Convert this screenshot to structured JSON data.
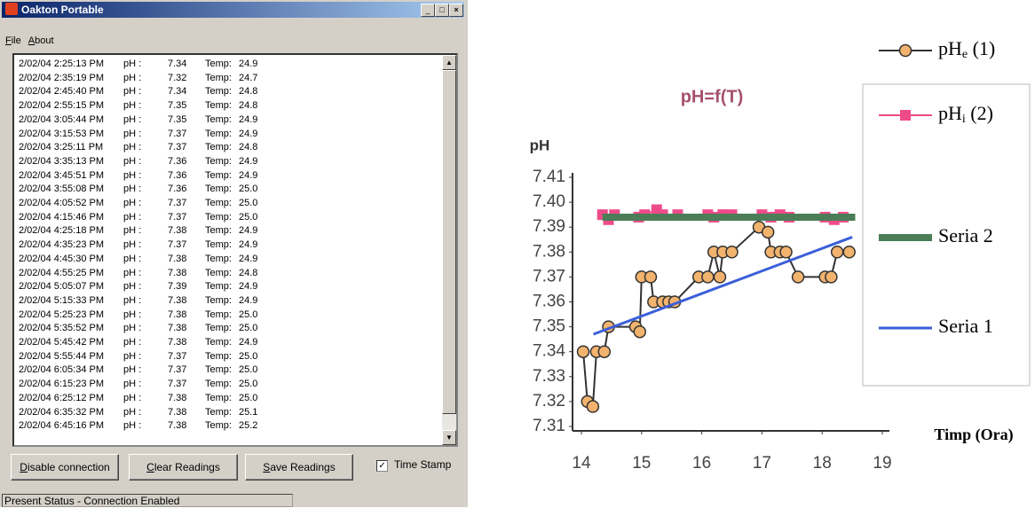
{
  "window": {
    "title": "Oakton Portable",
    "menu": [
      "File",
      "About"
    ],
    "readings": {
      "ph_label": "pH :",
      "temp_label": "Temp:",
      "rows": [
        [
          "2/02/04 2:25:13 PM",
          "7.34",
          "24.9"
        ],
        [
          "2/02/04 2:35:19 PM",
          "7.32",
          "24.7"
        ],
        [
          "2/02/04 2:45:40 PM",
          "7.34",
          "24.8"
        ],
        [
          "2/02/04 2:55:15 PM",
          "7.35",
          "24.8"
        ],
        [
          "2/02/04 3:05:44 PM",
          "7.35",
          "24.9"
        ],
        [
          "2/02/04 3:15:53 PM",
          "7.37",
          "24.9"
        ],
        [
          "2/02/04 3:25:11 PM",
          "7.37",
          "24.8"
        ],
        [
          "2/02/04 3:35:13 PM",
          "7.36",
          "24.9"
        ],
        [
          "2/02/04 3:45:51 PM",
          "7.36",
          "24.9"
        ],
        [
          "2/02/04 3:55:08 PM",
          "7.36",
          "25.0"
        ],
        [
          "2/02/04 4:05:52 PM",
          "7.37",
          "25.0"
        ],
        [
          "2/02/04 4:15:46 PM",
          "7.37",
          "25.0"
        ],
        [
          "2/02/04 4:25:18 PM",
          "7.38",
          "24.9"
        ],
        [
          "2/02/04 4:35:23 PM",
          "7.37",
          "24.9"
        ],
        [
          "2/02/04 4:45:30 PM",
          "7.38",
          "24.9"
        ],
        [
          "2/02/04 4:55:25 PM",
          "7.38",
          "24.8"
        ],
        [
          "2/02/04 5:05:07 PM",
          "7.39",
          "24.9"
        ],
        [
          "2/02/04 5:15:33 PM",
          "7.38",
          "24.9"
        ],
        [
          "2/02/04 5:25:23 PM",
          "7.38",
          "25.0"
        ],
        [
          "2/02/04 5:35:52 PM",
          "7.38",
          "25.0"
        ],
        [
          "2/02/04 5:45:42 PM",
          "7.38",
          "24.9"
        ],
        [
          "2/02/04 5:55:44 PM",
          "7.37",
          "25.0"
        ],
        [
          "2/02/04 6:05:34 PM",
          "7.37",
          "25.0"
        ],
        [
          "2/02/04 6:15:23 PM",
          "7.37",
          "25.0"
        ],
        [
          "2/02/04 6:25:12 PM",
          "7.38",
          "25.0"
        ],
        [
          "2/02/04 6:35:32 PM",
          "7.38",
          "25.1"
        ],
        [
          "2/02/04 6:45:16 PM",
          "7.38",
          "25.2"
        ]
      ]
    },
    "buttons": [
      "Disable connection",
      "Clear Readings",
      "Save Readings"
    ],
    "checkbox": "Time Stamp",
    "status": "Present Status - Connection Enabled"
  },
  "chart_data": {
    "type": "line",
    "title": "pH=f(T)",
    "y_label": "pH",
    "x_label": "Timp (Ora)",
    "xlim": [
      14,
      19
    ],
    "xticks": [
      14,
      15,
      16,
      17,
      18,
      19
    ],
    "ylim": [
      7.31,
      7.41
    ],
    "yticks": [
      7.31,
      7.32,
      7.33,
      7.34,
      7.35,
      7.36,
      7.37,
      7.38,
      7.39,
      {
        "value": 7.4,
        "label": "7.40"
      },
      7.41
    ],
    "series": [
      {
        "name": "pHe (1)",
        "color": "#f2b36e",
        "marker": "circle",
        "x": [
          14.03,
          14.1,
          14.19,
          14.25,
          14.38,
          14.45,
          14.9,
          14.97,
          15.0,
          15.15,
          15.2,
          15.35,
          15.45,
          15.55,
          15.95,
          16.1,
          16.2,
          16.3,
          16.35,
          16.5,
          16.95,
          17.1,
          17.15,
          17.3,
          17.4,
          17.6,
          18.05,
          18.15,
          18.25,
          18.45
        ],
        "values": [
          7.34,
          7.32,
          7.318,
          7.34,
          7.34,
          7.35,
          7.35,
          7.348,
          7.37,
          7.37,
          7.36,
          7.36,
          7.36,
          7.36,
          7.37,
          7.37,
          7.38,
          7.37,
          7.38,
          7.38,
          7.39,
          7.388,
          7.38,
          7.38,
          7.38,
          7.37,
          7.37,
          7.37,
          7.38,
          7.38
        ]
      },
      {
        "name": "pHi (2)",
        "color": "#ee4b8a",
        "marker": "square",
        "x": [
          14.35,
          14.45,
          14.55,
          14.95,
          15.05,
          15.25,
          15.35,
          15.6,
          16.1,
          16.2,
          16.35,
          16.5,
          17.0,
          17.15,
          17.3,
          17.45,
          18.05,
          18.2,
          18.35
        ],
        "values": [
          7.395,
          7.393,
          7.395,
          7.394,
          7.395,
          7.397,
          7.395,
          7.395,
          7.395,
          7.394,
          7.395,
          7.395,
          7.395,
          7.394,
          7.395,
          7.394,
          7.394,
          7.393,
          7.394
        ]
      },
      {
        "name": "Seria 2",
        "color": "#4b7d57",
        "marker": "none",
        "x": [
          14.35,
          18.55
        ],
        "values": [
          7.394,
          7.394
        ]
      },
      {
        "name": "Seria 1",
        "color": "#3b5fd9",
        "marker": "none",
        "x": [
          14.2,
          18.5
        ],
        "values": [
          7.347,
          7.386
        ]
      }
    ]
  }
}
